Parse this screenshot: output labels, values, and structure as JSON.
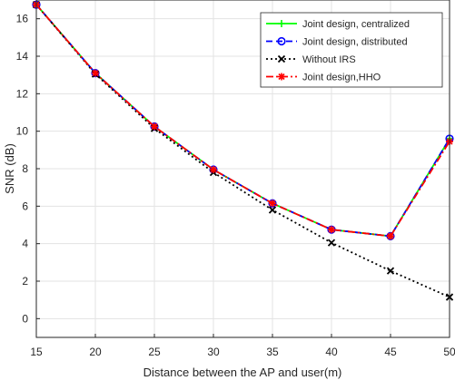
{
  "chart_data": {
    "type": "line",
    "xlabel": "Distance between the AP and user(m)",
    "ylabel": "SNR (dB)",
    "xlim": [
      15,
      50
    ],
    "ylim": [
      -1,
      17
    ],
    "x_ticks": [
      15,
      20,
      25,
      30,
      35,
      40,
      45,
      50
    ],
    "y_ticks": [
      0,
      2,
      4,
      6,
      8,
      10,
      12,
      14,
      16
    ],
    "grid": true,
    "legend_position": "top-right",
    "x": [
      15,
      20,
      25,
      30,
      35,
      40,
      45,
      50
    ],
    "series": [
      {
        "name": "Joint design, centralized",
        "values": [
          16.75,
          13.1,
          10.25,
          7.95,
          6.15,
          4.75,
          4.4,
          9.6
        ],
        "color": "#00ff00",
        "dash": "solid",
        "marker": "plus"
      },
      {
        "name": "Joint design, distributed",
        "values": [
          16.75,
          13.1,
          10.25,
          7.95,
          6.15,
          4.75,
          4.4,
          9.6
        ],
        "color": "#0000ff",
        "dash": "dashed",
        "marker": "circle"
      },
      {
        "name": "Without IRS",
        "values": [
          16.75,
          13.05,
          10.15,
          7.8,
          5.8,
          4.05,
          2.55,
          1.15
        ],
        "color": "#000000",
        "dash": "dotted",
        "marker": "x"
      },
      {
        "name": "Joint design,HHO",
        "values": [
          16.75,
          13.1,
          10.25,
          7.95,
          6.15,
          4.75,
          4.4,
          9.45
        ],
        "color": "#ff0000",
        "dash": "dashdot",
        "marker": "asterisk"
      }
    ]
  }
}
